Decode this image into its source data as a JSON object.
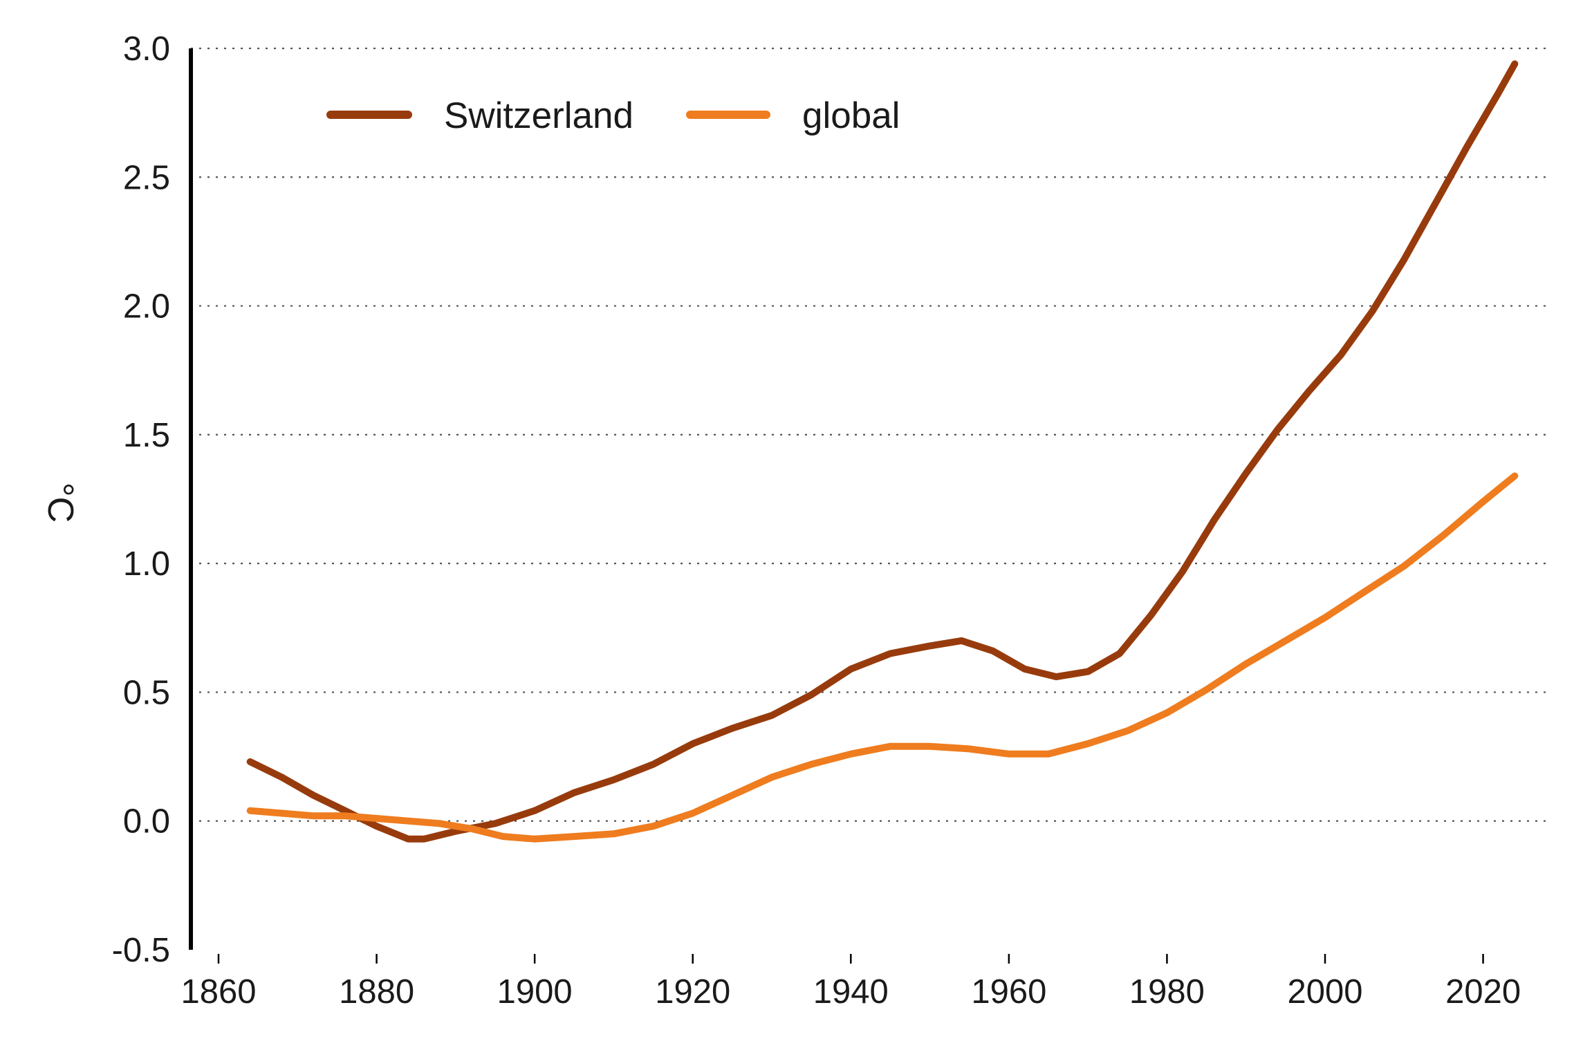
{
  "chart_data": {
    "type": "line",
    "title": "",
    "xlabel": "",
    "ylabel": "°C",
    "xlim": [
      1856.5,
      2028
    ],
    "ylim": [
      -0.5,
      3.0
    ],
    "x_ticks": [
      "1860",
      "1880",
      "1900",
      "1920",
      "1940",
      "1960",
      "1980",
      "2000",
      "2020"
    ],
    "y_ticks": [
      "3.0",
      "2.5",
      "2.0",
      "1.5",
      "1.0",
      "0.5",
      "0.0",
      "-0.5"
    ],
    "grid": "horizontal dotted",
    "legend_position": "top-left",
    "series": [
      {
        "name": "Switzerland",
        "color": "#983b0c",
        "x": [
          1864,
          1868,
          1872,
          1876,
          1880,
          1884,
          1886,
          1890,
          1895,
          1900,
          1905,
          1910,
          1915,
          1920,
          1925,
          1930,
          1935,
          1940,
          1945,
          1950,
          1954,
          1958,
          1962,
          1966,
          1970,
          1974,
          1978,
          1982,
          1986,
          1990,
          1994,
          1998,
          2002,
          2006,
          2010,
          2014,
          2018,
          2022,
          2024
        ],
        "values": [
          0.23,
          0.17,
          0.1,
          0.04,
          -0.02,
          -0.07,
          -0.07,
          -0.04,
          -0.01,
          0.04,
          0.11,
          0.16,
          0.22,
          0.3,
          0.36,
          0.41,
          0.49,
          0.59,
          0.65,
          0.68,
          0.7,
          0.66,
          0.59,
          0.56,
          0.58,
          0.65,
          0.8,
          0.97,
          1.17,
          1.35,
          1.52,
          1.67,
          1.81,
          1.98,
          2.18,
          2.4,
          2.62,
          2.83,
          2.94
        ]
      },
      {
        "name": "global",
        "color": "#ef7c1e",
        "x": [
          1864,
          1868,
          1872,
          1876,
          1880,
          1884,
          1888,
          1892,
          1896,
          1900,
          1905,
          1910,
          1915,
          1920,
          1925,
          1930,
          1935,
          1940,
          1945,
          1950,
          1955,
          1960,
          1965,
          1970,
          1975,
          1980,
          1985,
          1990,
          1995,
          2000,
          2005,
          2010,
          2015,
          2020,
          2024
        ],
        "values": [
          0.04,
          0.03,
          0.02,
          0.02,
          0.01,
          0.0,
          -0.01,
          -0.03,
          -0.06,
          -0.07,
          -0.06,
          -0.05,
          -0.02,
          0.03,
          0.1,
          0.17,
          0.22,
          0.26,
          0.29,
          0.29,
          0.28,
          0.26,
          0.26,
          0.3,
          0.35,
          0.42,
          0.51,
          0.61,
          0.7,
          0.79,
          0.89,
          0.99,
          1.11,
          1.24,
          1.34
        ]
      }
    ]
  }
}
